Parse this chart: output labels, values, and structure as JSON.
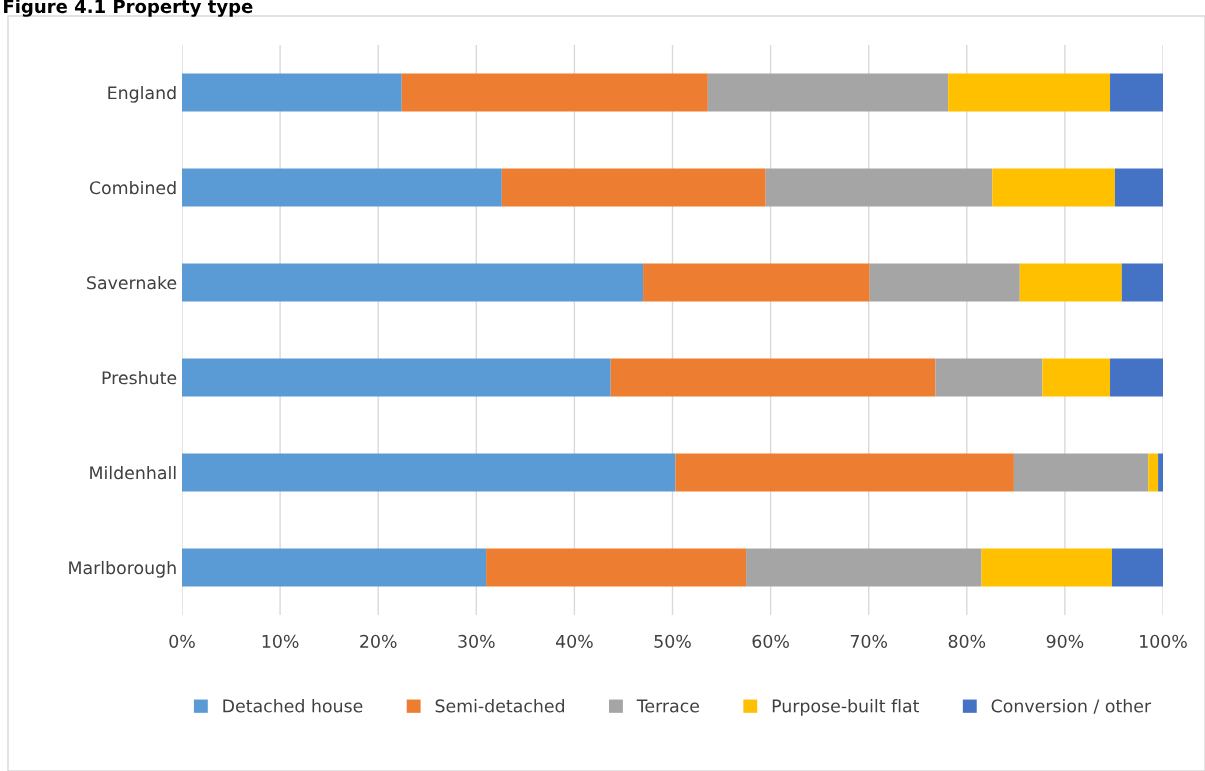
{
  "chart_data": {
    "type": "bar",
    "title": "Figure 4.1 Property type",
    "orientation": "horizontal",
    "stacked": true,
    "categories": [
      "England",
      "Combined",
      "Savernake",
      "Preshute",
      "Mildenhall",
      "Marlborough"
    ],
    "series": [
      {
        "name": "Detached house",
        "color": "#5b9bd5",
        "values": [
          22.4,
          32.6,
          47.0,
          43.7,
          50.3,
          31.0
        ]
      },
      {
        "name": "Semi-detached",
        "color": "#ed7d31",
        "values": [
          31.2,
          26.9,
          23.1,
          33.1,
          34.5,
          26.5
        ]
      },
      {
        "name": "Terrace",
        "color": "#a5a5a5",
        "values": [
          24.5,
          23.1,
          15.3,
          10.9,
          13.7,
          24.0
        ]
      },
      {
        "name": "Purpose-built flat",
        "color": "#ffc000",
        "values": [
          16.5,
          12.5,
          10.4,
          6.9,
          1.0,
          13.3
        ]
      },
      {
        "name": "Conversion / other",
        "color": "#4472c4",
        "values": [
          5.4,
          4.9,
          4.2,
          5.4,
          0.5,
          5.2
        ]
      }
    ],
    "xlim": [
      0,
      100
    ],
    "xticks": [
      {
        "value": 0,
        "label": "0%"
      },
      {
        "value": 10,
        "label": "10%"
      },
      {
        "value": 20,
        "label": "20%"
      },
      {
        "value": 30,
        "label": "30%"
      },
      {
        "value": 40,
        "label": "40%"
      },
      {
        "value": 50,
        "label": "50%"
      },
      {
        "value": 60,
        "label": "60%"
      },
      {
        "value": 70,
        "label": "70%"
      },
      {
        "value": 80,
        "label": "80%"
      },
      {
        "value": 90,
        "label": "90%"
      },
      {
        "value": 100,
        "label": "100%"
      }
    ],
    "grid": "x",
    "legend": "bottom"
  }
}
